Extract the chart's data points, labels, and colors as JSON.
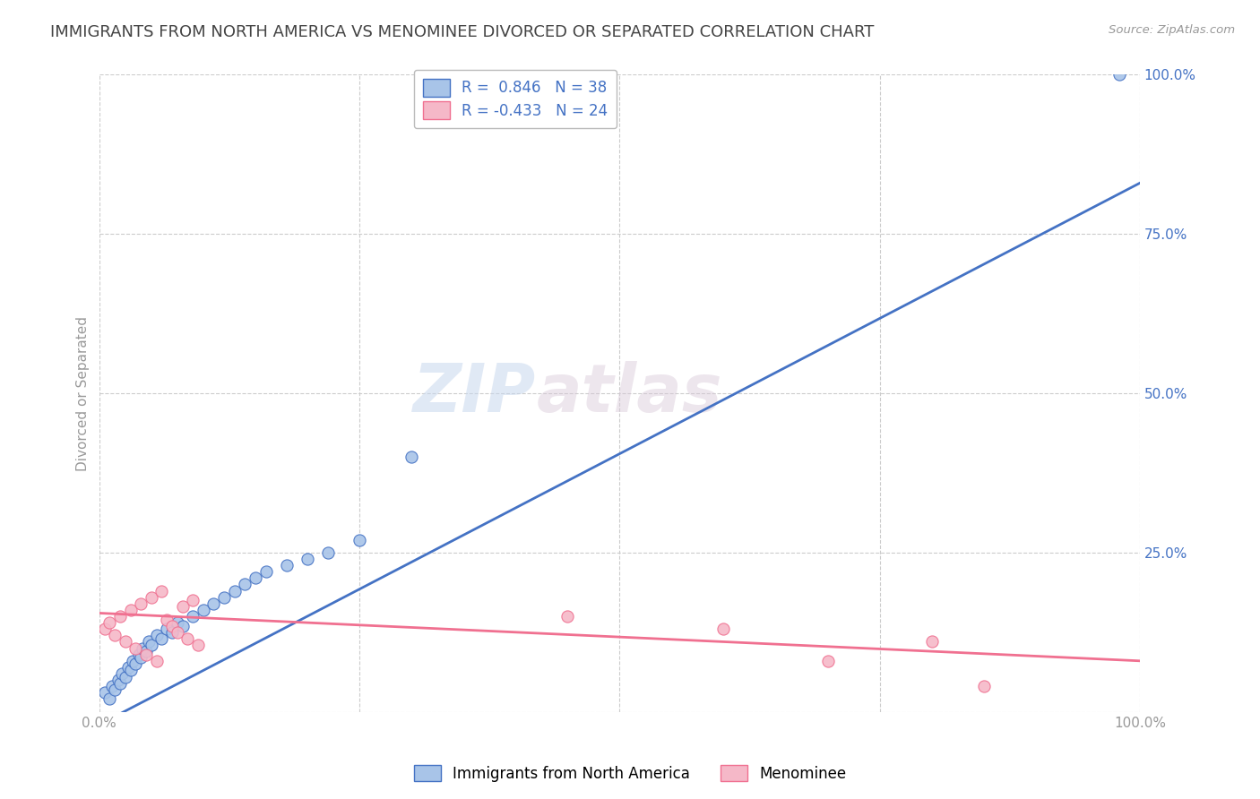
{
  "title": "IMMIGRANTS FROM NORTH AMERICA VS MENOMINEE DIVORCED OR SEPARATED CORRELATION CHART",
  "source": "Source: ZipAtlas.com",
  "ylabel": "Divorced or Separated",
  "blue_R": 0.846,
  "blue_N": 38,
  "pink_R": -0.433,
  "pink_N": 24,
  "blue_color": "#A8C4E8",
  "pink_color": "#F5B8C8",
  "blue_line_color": "#4472C4",
  "pink_line_color": "#F07090",
  "watermark_zip": "ZIP",
  "watermark_atlas": "atlas",
  "xlim": [
    0.0,
    100.0
  ],
  "ylim": [
    0.0,
    100.0
  ],
  "xticks": [
    0.0,
    25.0,
    50.0,
    75.0,
    100.0
  ],
  "yticks": [
    0.0,
    25.0,
    50.0,
    75.0,
    100.0
  ],
  "xticklabels_show": [
    "0.0%",
    "100.0%"
  ],
  "xticklabels_pos": [
    0.0,
    100.0
  ],
  "right_yticklabels": [
    "",
    "25.0%",
    "50.0%",
    "75.0%",
    "100.0%"
  ],
  "background_color": "#FFFFFF",
  "grid_color": "#CCCCCC",
  "title_fontsize": 13,
  "axis_label_fontsize": 11,
  "tick_fontsize": 11,
  "legend_fontsize": 12,
  "right_tick_color": "#4472C4",
  "blue_line_x": [
    0.0,
    100.0
  ],
  "blue_line_y": [
    -2.0,
    83.0
  ],
  "pink_line_x": [
    0.0,
    100.0
  ],
  "pink_line_y": [
    15.5,
    8.0
  ],
  "blue_scatter_x": [
    0.5,
    1.0,
    1.2,
    1.5,
    1.8,
    2.0,
    2.2,
    2.5,
    2.8,
    3.0,
    3.2,
    3.5,
    3.8,
    4.0,
    4.2,
    4.5,
    4.8,
    5.0,
    5.5,
    6.0,
    6.5,
    7.0,
    7.5,
    8.0,
    9.0,
    10.0,
    11.0,
    12.0,
    13.0,
    14.0,
    15.0,
    16.0,
    18.0,
    20.0,
    22.0,
    25.0,
    30.0,
    98.0
  ],
  "blue_scatter_y": [
    3.0,
    2.0,
    4.0,
    3.5,
    5.0,
    4.5,
    6.0,
    5.5,
    7.0,
    6.5,
    8.0,
    7.5,
    9.0,
    8.5,
    10.0,
    9.5,
    11.0,
    10.5,
    12.0,
    11.5,
    13.0,
    12.5,
    14.0,
    13.5,
    15.0,
    16.0,
    17.0,
    18.0,
    19.0,
    20.0,
    21.0,
    22.0,
    23.0,
    24.0,
    25.0,
    27.0,
    40.0,
    100.0
  ],
  "pink_scatter_x": [
    0.5,
    1.0,
    1.5,
    2.0,
    2.5,
    3.0,
    3.5,
    4.0,
    4.5,
    5.0,
    5.5,
    6.0,
    6.5,
    7.0,
    7.5,
    8.0,
    8.5,
    9.0,
    9.5,
    45.0,
    60.0,
    70.0,
    80.0,
    85.0
  ],
  "pink_scatter_y": [
    13.0,
    14.0,
    12.0,
    15.0,
    11.0,
    16.0,
    10.0,
    17.0,
    9.0,
    18.0,
    8.0,
    19.0,
    14.5,
    13.5,
    12.5,
    16.5,
    11.5,
    17.5,
    10.5,
    15.0,
    13.0,
    8.0,
    11.0,
    4.0
  ]
}
